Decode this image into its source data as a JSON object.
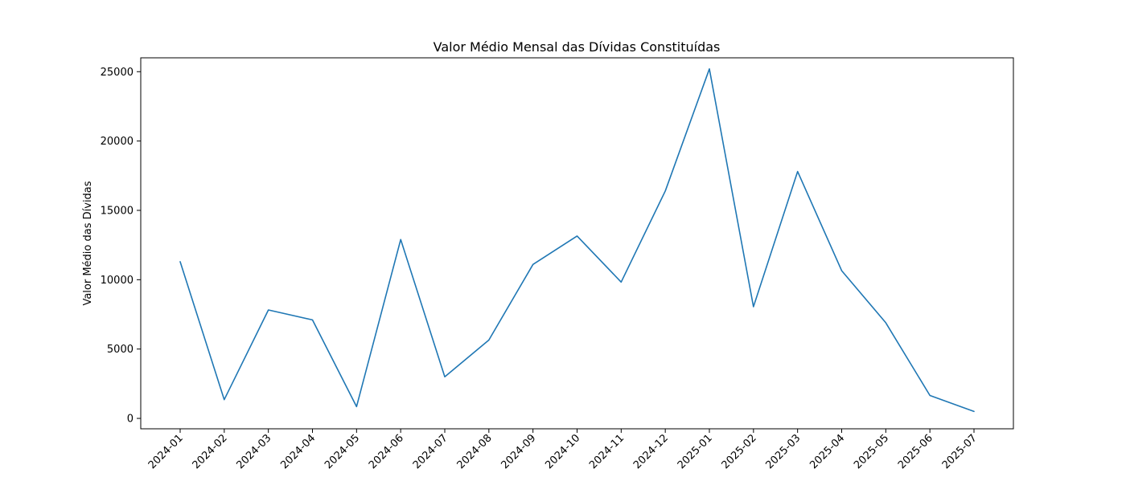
{
  "chart_data": {
    "type": "line",
    "title": "Valor Médio Mensal das Dívidas Constituídas",
    "xlabel": "",
    "ylabel": "Valor Médio das Dívidas",
    "categories": [
      "2024-01",
      "2024-02",
      "2024-03",
      "2024-04",
      "2024-05",
      "2024-06",
      "2024-07",
      "2024-08",
      "2024-09",
      "2024-10",
      "2024-11",
      "2024-12",
      "2025-01",
      "2025-02",
      "2025-03",
      "2025-04",
      "2025-05",
      "2025-06",
      "2025-07"
    ],
    "series": [
      {
        "values": [
          11300,
          1350,
          7820,
          7100,
          850,
          12900,
          3000,
          5650,
          11100,
          13150,
          9830,
          16400,
          25200,
          8050,
          17800,
          10650,
          6900,
          1650,
          500
        ]
      }
    ],
    "ylim": [
      -750,
      26000
    ],
    "yticks": [
      0,
      5000,
      10000,
      15000,
      20000,
      25000
    ],
    "grid": false,
    "colors": {
      "line": "#1f77b4",
      "axis": "#000000"
    }
  }
}
